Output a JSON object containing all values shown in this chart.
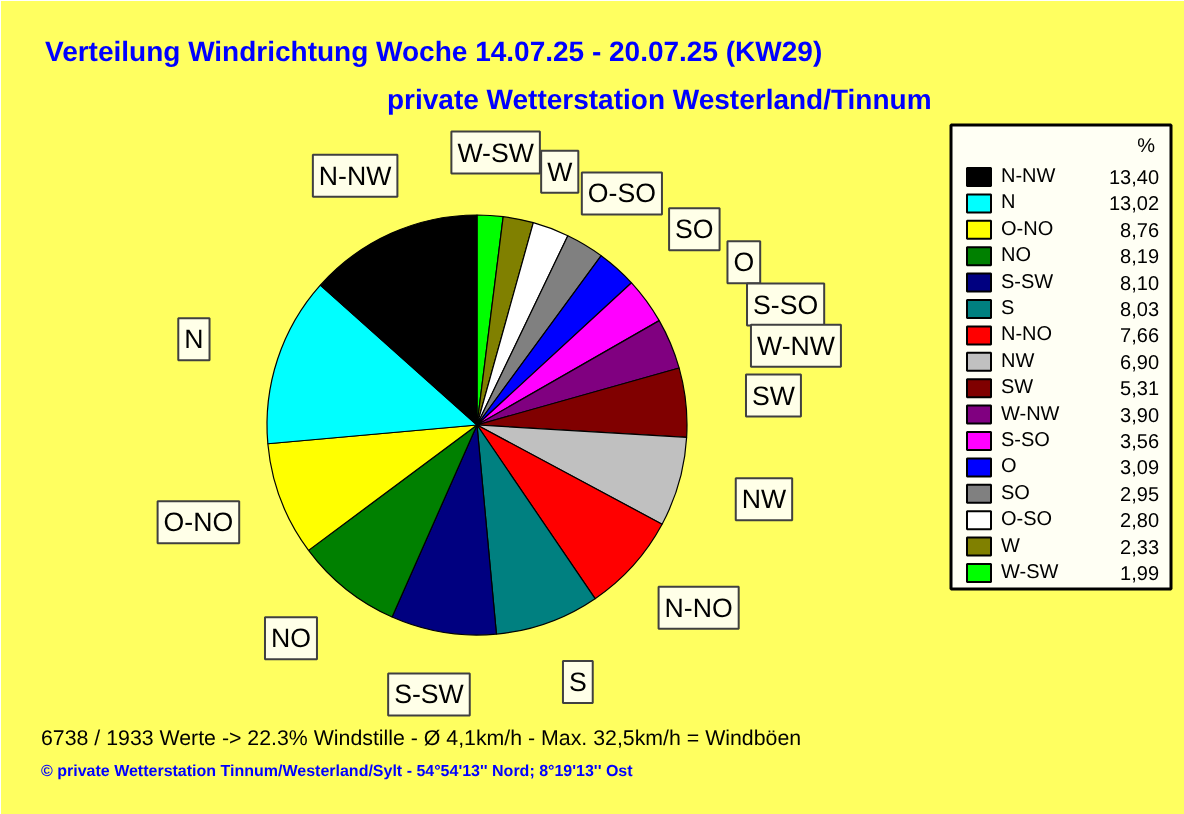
{
  "chart_data": {
    "type": "pie",
    "title": "Verteilung Windrichtung   Woche 14.07.25 - 20.07.25 (KW29)",
    "subtitle": "private Wetterstation Westerland/Tinnum",
    "legend_title": "%",
    "legend": "right",
    "categories": [
      "W-SW",
      "W",
      "O-SO",
      "SO",
      "O",
      "S-SO",
      "W-NW",
      "SW",
      "NW",
      "N-NO",
      "S",
      "S-SW",
      "NO",
      "O-NO",
      "N",
      "N-NW"
    ],
    "values": [
      1.99,
      2.33,
      2.8,
      2.95,
      3.09,
      3.56,
      3.9,
      5.31,
      6.9,
      7.66,
      8.03,
      8.1,
      8.19,
      8.76,
      13.02,
      13.4
    ],
    "value_labels": [
      "1,99",
      "2,33",
      "2,80",
      "2,95",
      "3,09",
      "3,56",
      "3,90",
      "5,31",
      "6,90",
      "7,66",
      "8,03",
      "8,10",
      "8,19",
      "8,76",
      "13,02",
      "13,40"
    ],
    "colors": [
      "#00ff00",
      "#808000",
      "#ffffff",
      "#808080",
      "#0000ff",
      "#ff00ff",
      "#800080",
      "#800000",
      "#c0c0c0",
      "#ff0000",
      "#008080",
      "#000080",
      "#008000",
      "#ffff00",
      "#00ffff",
      "#000000"
    ],
    "annotations": [
      "6738 / 1933 Werte  -> 22.3% Windstille   -   Ø 4,1km/h  -  Max. 32,5km/h = Windböen",
      "© private Wetterstation Tinnum/Westerland/Sylt   -   54°54'13'' Nord; 8°19'13'' Ost"
    ]
  }
}
